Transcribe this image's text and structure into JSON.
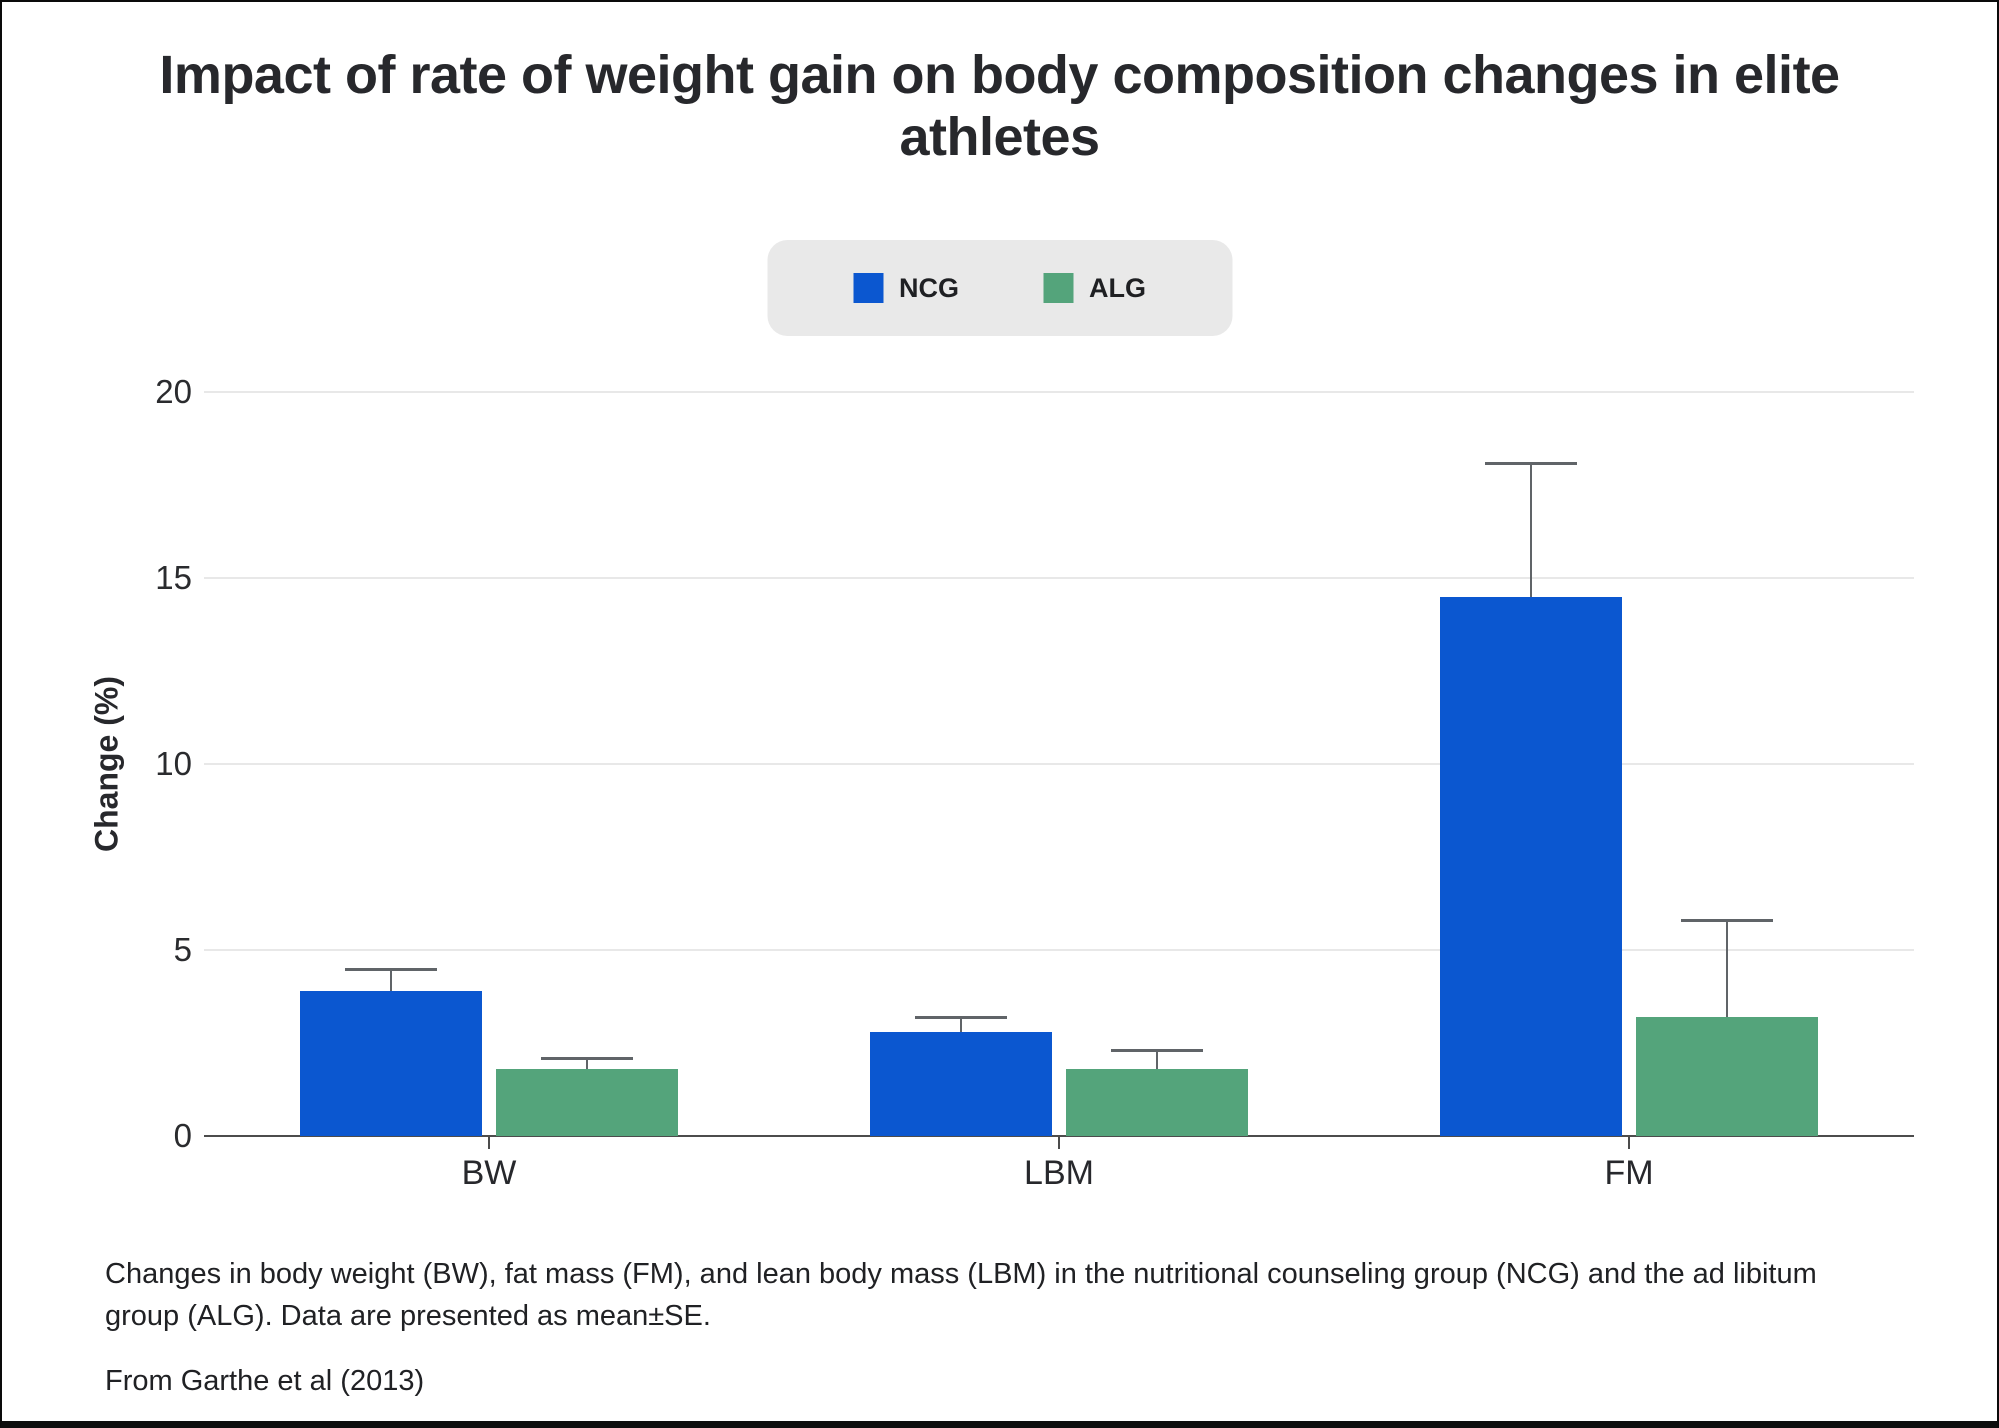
{
  "figure": {
    "title": "Impact of rate of weight gain on body composition changes in elite athletes",
    "caption": "Changes in body weight (BW), fat mass (FM), and lean body mass (LBM) in the nutritional counseling group (NCG) and the ad libitum group (ALG). Data are presented as mean±SE.",
    "source": "From Garthe et al (2013)"
  },
  "colors": {
    "ncg": "#0b57d0",
    "alg": "#54a47b",
    "legend_bg": "#e9e9e9",
    "grid": "#e8e8e8",
    "axis": "#4c4c4c",
    "error_bar": "#606468"
  },
  "chart_data": {
    "type": "bar",
    "title": "Impact of rate of weight gain on body composition changes in elite athletes",
    "xlabel": "",
    "ylabel": "Change (%)",
    "categories": [
      "BW",
      "LBM",
      "FM"
    ],
    "series": [
      {
        "name": "NCG",
        "color": "#0b57d0",
        "values": [
          3.9,
          2.8,
          14.5
        ],
        "se": [
          0.6,
          0.4,
          3.6
        ]
      },
      {
        "name": "ALG",
        "color": "#54a47b",
        "values": [
          1.8,
          1.8,
          3.2
        ],
        "se": [
          0.3,
          0.5,
          2.6
        ]
      }
    ],
    "error_bars": "upper only, mean±SE",
    "yticks": [
      0,
      5,
      10,
      15,
      20
    ],
    "ylim": [
      0,
      20
    ],
    "grid": "horizontal",
    "legend_position": "top center"
  }
}
